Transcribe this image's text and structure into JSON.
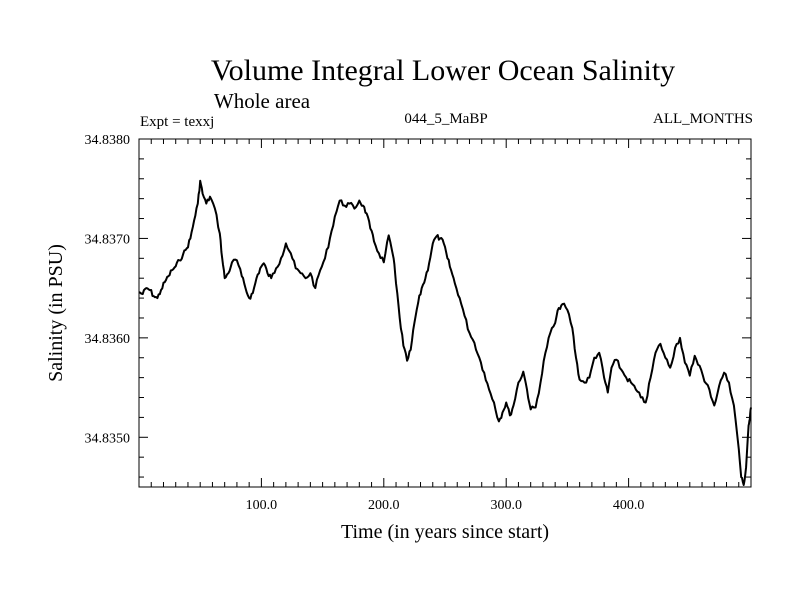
{
  "chart_data": {
    "type": "line",
    "title": "Volume Integral Lower Ocean Salinity",
    "subtitle": "Whole area",
    "header_left": "Expt = texxj",
    "header_center": "044_5_MaBP",
    "header_right": "ALL_MONTHS",
    "xlabel": "Time (in years since start)",
    "ylabel": "Salinity (in PSU)",
    "xlim": [
      0,
      500
    ],
    "ylim": [
      34.8345,
      34.838
    ],
    "x_ticks": [
      {
        "value": 100,
        "label": "100.0"
      },
      {
        "value": 200,
        "label": "200.0"
      },
      {
        "value": 300,
        "label": "300.0"
      },
      {
        "value": 400,
        "label": "400.0"
      }
    ],
    "y_ticks": [
      {
        "value": 34.835,
        "label": "34.8350"
      },
      {
        "value": 34.836,
        "label": "34.8360"
      },
      {
        "value": 34.837,
        "label": "34.8370"
      },
      {
        "value": 34.838,
        "label": "34.8380"
      }
    ],
    "grid": false,
    "series": [
      {
        "name": "salinity",
        "color": "#000000",
        "points": [
          [
            0,
            34.83646
          ],
          [
            3,
            34.83644
          ],
          [
            6,
            34.8365
          ],
          [
            9,
            34.83648
          ],
          [
            12,
            34.83642
          ],
          [
            15,
            34.8364
          ],
          [
            18,
            34.83648
          ],
          [
            21,
            34.83656
          ],
          [
            24,
            34.83662
          ],
          [
            27,
            34.83668
          ],
          [
            30,
            34.83672
          ],
          [
            33,
            34.83678
          ],
          [
            36,
            34.83684
          ],
          [
            39,
            34.8369
          ],
          [
            42,
            34.837
          ],
          [
            45,
            34.83718
          ],
          [
            48,
            34.83735
          ],
          [
            50,
            34.83758
          ],
          [
            52,
            34.83745
          ],
          [
            55,
            34.83735
          ],
          [
            58,
            34.83742
          ],
          [
            62,
            34.8373
          ],
          [
            66,
            34.83705
          ],
          [
            68,
            34.8368
          ],
          [
            70,
            34.8366
          ],
          [
            73,
            34.83665
          ],
          [
            76,
            34.83676
          ],
          [
            80,
            34.83678
          ],
          [
            84,
            34.83662
          ],
          [
            87,
            34.8365
          ],
          [
            90,
            34.8364
          ],
          [
            93,
            34.83645
          ],
          [
            96,
            34.8366
          ],
          [
            99,
            34.8367
          ],
          [
            102,
            34.83675
          ],
          [
            105,
            34.83665
          ],
          [
            108,
            34.8366
          ],
          [
            112,
            34.8367
          ],
          [
            116,
            34.8368
          ],
          [
            120,
            34.83695
          ],
          [
            124,
            34.83685
          ],
          [
            128,
            34.8367
          ],
          [
            132,
            34.83665
          ],
          [
            136,
            34.8366
          ],
          [
            140,
            34.83665
          ],
          [
            144,
            34.8365
          ],
          [
            148,
            34.83668
          ],
          [
            152,
            34.8368
          ],
          [
            156,
            34.837
          ],
          [
            160,
            34.83722
          ],
          [
            164,
            34.83738
          ],
          [
            168,
            34.83733
          ],
          [
            172,
            34.83735
          ],
          [
            176,
            34.8373
          ],
          [
            180,
            34.83738
          ],
          [
            183,
            34.83733
          ],
          [
            186,
            34.83725
          ],
          [
            189,
            34.8371
          ],
          [
            192,
            34.83697
          ],
          [
            196,
            34.83685
          ],
          [
            200,
            34.83676
          ],
          [
            204,
            34.83703
          ],
          [
            208,
            34.8368
          ],
          [
            210,
            34.83655
          ],
          [
            213,
            34.8362
          ],
          [
            216,
            34.83592
          ],
          [
            219,
            34.83577
          ],
          [
            222,
            34.83588
          ],
          [
            225,
            34.83615
          ],
          [
            228,
            34.83635
          ],
          [
            231,
            34.8365
          ],
          [
            234,
            34.8366
          ],
          [
            237,
            34.83675
          ],
          [
            240,
            34.83695
          ],
          [
            243,
            34.83702
          ],
          [
            246,
            34.837
          ],
          [
            249,
            34.83695
          ],
          [
            252,
            34.8368
          ],
          [
            255,
            34.83668
          ],
          [
            258,
            34.83655
          ],
          [
            262,
            34.8364
          ],
          [
            266,
            34.83622
          ],
          [
            270,
            34.83605
          ],
          [
            274,
            34.83595
          ],
          [
            278,
            34.8358
          ],
          [
            282,
            34.83565
          ],
          [
            286,
            34.83548
          ],
          [
            290,
            34.83535
          ],
          [
            294,
            34.83516
          ],
          [
            297,
            34.83525
          ],
          [
            300,
            34.83535
          ],
          [
            303,
            34.83522
          ],
          [
            306,
            34.83532
          ],
          [
            310,
            34.83555
          ],
          [
            314,
            34.83566
          ],
          [
            317,
            34.83548
          ],
          [
            320,
            34.83528
          ],
          [
            324,
            34.8353
          ],
          [
            328,
            34.83555
          ],
          [
            332,
            34.83585
          ],
          [
            336,
            34.83605
          ],
          [
            340,
            34.83615
          ],
          [
            343,
            34.8363
          ],
          [
            346,
            34.83634
          ],
          [
            350,
            34.83628
          ],
          [
            354,
            34.8361
          ],
          [
            357,
            34.8358
          ],
          [
            360,
            34.83558
          ],
          [
            364,
            34.83555
          ],
          [
            368,
            34.8356
          ],
          [
            372,
            34.8358
          ],
          [
            376,
            34.83585
          ],
          [
            380,
            34.8356
          ],
          [
            383,
            34.83545
          ],
          [
            386,
            34.8357
          ],
          [
            390,
            34.83578
          ],
          [
            394,
            34.83568
          ],
          [
            398,
            34.8356
          ],
          [
            402,
            34.83555
          ],
          [
            406,
            34.83548
          ],
          [
            410,
            34.8354
          ],
          [
            414,
            34.83535
          ],
          [
            418,
            34.8356
          ],
          [
            422,
            34.83585
          ],
          [
            426,
            34.83594
          ],
          [
            430,
            34.8358
          ],
          [
            434,
            34.8357
          ],
          [
            438,
            34.8359
          ],
          [
            442,
            34.836
          ],
          [
            446,
            34.83575
          ],
          [
            450,
            34.83562
          ],
          [
            454,
            34.83582
          ],
          [
            458,
            34.83572
          ],
          [
            462,
            34.83556
          ],
          [
            466,
            34.83548
          ],
          [
            470,
            34.83532
          ],
          [
            474,
            34.83552
          ],
          [
            478,
            34.83565
          ],
          [
            482,
            34.83555
          ],
          [
            486,
            34.83532
          ],
          [
            490,
            34.83488
          ],
          [
            492,
            34.8346
          ],
          [
            494,
            34.83452
          ],
          [
            496,
            34.8347
          ],
          [
            498,
            34.83512
          ],
          [
            499,
            34.83518
          ],
          [
            500,
            34.8353
          ]
        ]
      }
    ]
  }
}
